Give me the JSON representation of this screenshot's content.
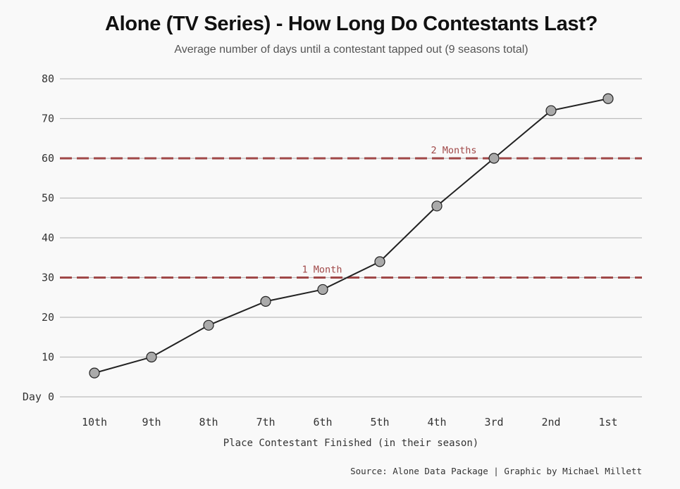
{
  "chart_data": {
    "type": "line",
    "title": "Alone (TV Series) - How Long Do Contestants Last?",
    "subtitle": "Average number of days until a contestant tapped out (9 seasons total)",
    "xlabel": "Place Contestant Finished (in their season)",
    "ylabel": "",
    "categories": [
      "10th",
      "9th",
      "8th",
      "7th",
      "6th",
      "5th",
      "4th",
      "3rd",
      "2nd",
      "1st"
    ],
    "values": [
      6,
      10,
      18,
      24,
      27,
      34,
      48,
      60,
      72,
      75
    ],
    "ylim": [
      0,
      80
    ],
    "yticks": [
      0,
      10,
      20,
      30,
      40,
      50,
      60,
      70,
      80
    ],
    "ytick_labels": [
      "Day 0",
      "10",
      "20",
      "30",
      "40",
      "50",
      "60",
      "70",
      "80"
    ],
    "grid": true,
    "reference_lines": [
      {
        "value": 30,
        "label": "1 Month",
        "color": "#a04848"
      },
      {
        "value": 60,
        "label": "2 Months",
        "color": "#a04848"
      }
    ],
    "line_color": "#222222",
    "marker_color": "#aaaaaa",
    "caption": "Source: Alone Data Package | Graphic by Michael Millett"
  }
}
